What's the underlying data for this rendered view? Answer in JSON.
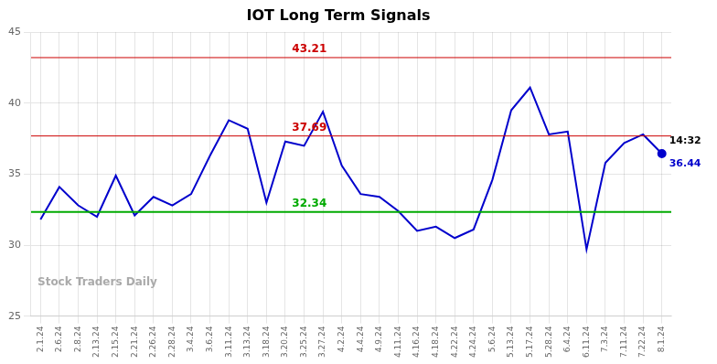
{
  "chart_data": {
    "type": "line",
    "title": "IOT Long Term Signals",
    "categories": [
      "2.1.24",
      "2.6.24",
      "2.8.24",
      "2.13.24",
      "2.15.24",
      "2.21.24",
      "2.26.24",
      "2.28.24",
      "3.4.24",
      "3.6.24",
      "3.11.24",
      "3.13.24",
      "3.18.24",
      "3.20.24",
      "3.25.24",
      "3.27.24",
      "4.2.24",
      "4.4.24",
      "4.9.24",
      "4.11.24",
      "4.16.24",
      "4.18.24",
      "4.22.24",
      "4.24.24",
      "5.6.24",
      "5.13.24",
      "5.17.24",
      "5.28.24",
      "6.4.24",
      "6.11.24",
      "7.3.24",
      "7.11.24",
      "7.22.24",
      "8.1.24"
    ],
    "values": [
      31.8,
      34.1,
      32.8,
      32.0,
      34.9,
      32.1,
      33.4,
      32.8,
      33.6,
      36.3,
      38.8,
      38.2,
      33.0,
      37.3,
      37.0,
      39.4,
      35.6,
      33.6,
      33.4,
      32.4,
      31.0,
      31.3,
      30.5,
      31.1,
      34.6,
      39.5,
      41.1,
      37.8,
      38.0,
      29.7,
      35.8,
      37.2,
      37.8,
      36.44
    ],
    "color": "#0000cc",
    "ylim": [
      25,
      45
    ],
    "yticks": [
      25,
      30,
      35,
      40,
      45
    ],
    "grid": true,
    "reference_lines": [
      {
        "value": 43.21,
        "label": "43.21",
        "color": "#cc0000"
      },
      {
        "value": 37.69,
        "label": "37.69",
        "color": "#cc0000"
      },
      {
        "value": 32.34,
        "label": "32.34",
        "color": "#00aa00"
      }
    ],
    "annotations": [
      {
        "text": "14:32"
      },
      {
        "text": "36.44",
        "color": "#0000cc"
      }
    ],
    "watermark": "Stock Traders Daily"
  }
}
